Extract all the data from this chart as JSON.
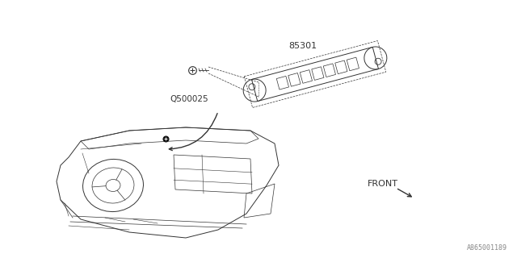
{
  "bg_color": "#ffffff",
  "line_color": "#333333",
  "label_85301": "85301",
  "label_Q500025": "Q500025",
  "label_FRONT": "FRONT",
  "watermark": "A865001189",
  "fig_width": 6.4,
  "fig_height": 3.2,
  "dpi": 100
}
